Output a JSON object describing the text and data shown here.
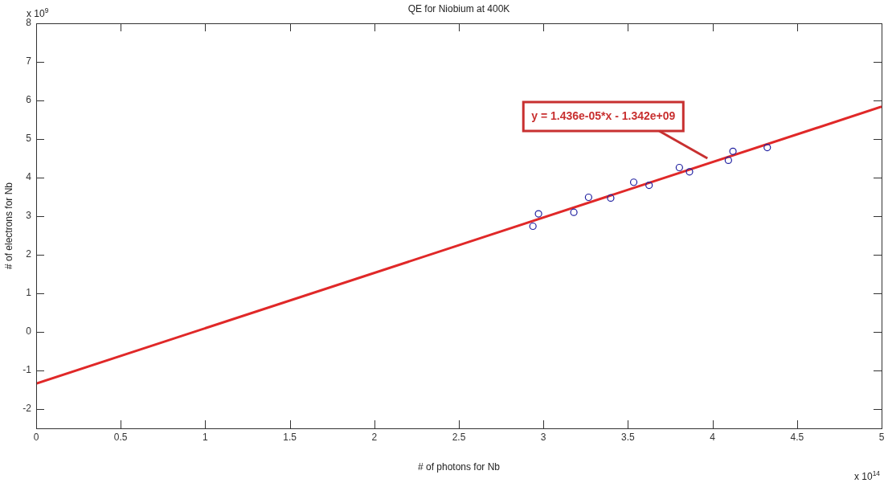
{
  "chart_data": {
    "type": "scatter",
    "title": "QE for Niobium at 400K",
    "xlabel": "# of photons for Nb",
    "ylabel": "# of electrons for Nb",
    "series": [
      {
        "color": "#2020a0",
        "marker": "circle",
        "x": [
          2.938,
          2.971,
          3.18,
          3.267,
          3.398,
          3.534,
          3.625,
          3.804,
          3.864,
          4.094,
          4.121,
          4.324
        ],
        "values": [
          2.74,
          3.06,
          3.1,
          3.49,
          3.47,
          3.88,
          3.8,
          4.26,
          4.15,
          4.45,
          4.68,
          4.78
        ]
      },
      {
        "type": "line",
        "color": "#e02828",
        "marker": "none",
        "line_style": "solid",
        "x": [
          0,
          5
        ],
        "values": [
          -1.342,
          5.838
        ]
      }
    ],
    "xlim": [
      0,
      5
    ],
    "xticks": [
      0,
      0.5,
      1,
      1.5,
      2,
      2.5,
      3,
      3.5,
      4,
      4.5,
      5
    ],
    "ylim": [
      -2.5,
      8
    ],
    "yticks": [
      -2,
      -1,
      0,
      1,
      2,
      3,
      4,
      5,
      6,
      7,
      8
    ],
    "grid": false,
    "legend": false,
    "annotations": [
      "x 10$^{9}$",
      "x 10$^{14}$",
      {
        "text": "y = 1.436e-05*x - 1.342e+09",
        "x": 3.97,
        "y": 4.5
      }
    ]
  }
}
